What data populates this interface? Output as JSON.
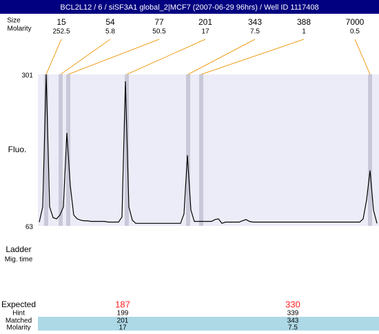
{
  "chart_data": {
    "type": "line",
    "title": "BCL2L12 / 6 / siSF3A1 global_2|MCF7 (2007-06-29 96hrs) / Well ID 1117408",
    "size_label": "Size",
    "molarity_label": "Molarity",
    "y_label": "Fluo.",
    "ylim": [
      63,
      301
    ],
    "yticks": [
      63,
      301
    ],
    "peaks": {
      "sizes": [
        15,
        54,
        77,
        201,
        343,
        388,
        7000
      ],
      "molarities": [
        252.5,
        5.8,
        50.5,
        17,
        7.5,
        1,
        0.5
      ]
    },
    "band_color": "#c8c8d8",
    "connector_color": "#f0a020",
    "background": "#ececf8",
    "series": [
      {
        "color": "#000000",
        "values": [
          69,
          93,
          301,
          93,
          76,
          74,
          80,
          93,
          209,
          126,
          80,
          74,
          72,
          71,
          71,
          70,
          70,
          70,
          70,
          70,
          69,
          69,
          69,
          69,
          77,
          290,
          93,
          72,
          67,
          67,
          67,
          67,
          67,
          67,
          67,
          67,
          67,
          67,
          67,
          67,
          67,
          67,
          82,
          174,
          88,
          70,
          70,
          70,
          70,
          70,
          70,
          73,
          74,
          67,
          69,
          69,
          69,
          69,
          69,
          71,
          73,
          70,
          69,
          69,
          69,
          69,
          69,
          69,
          69,
          69,
          69,
          69,
          69,
          69,
          69,
          69,
          69,
          69,
          69,
          69,
          69,
          69,
          69,
          69,
          69,
          69,
          69,
          69,
          69,
          69,
          69,
          69,
          69,
          69,
          74,
          104,
          150,
          88,
          67
        ]
      }
    ]
  },
  "results": {
    "ladder": "Ladder",
    "mig_time": "Mig. time",
    "expected": "Expected",
    "hint": "Hint",
    "matched": "Matched",
    "molarity": "Molarity",
    "columns": [
      {
        "expected": 187,
        "hint": 199,
        "matched": 201,
        "molarity": 17
      },
      {
        "expected": 330,
        "hint": 339,
        "matched": 343,
        "molarity": 7.5
      }
    ]
  }
}
